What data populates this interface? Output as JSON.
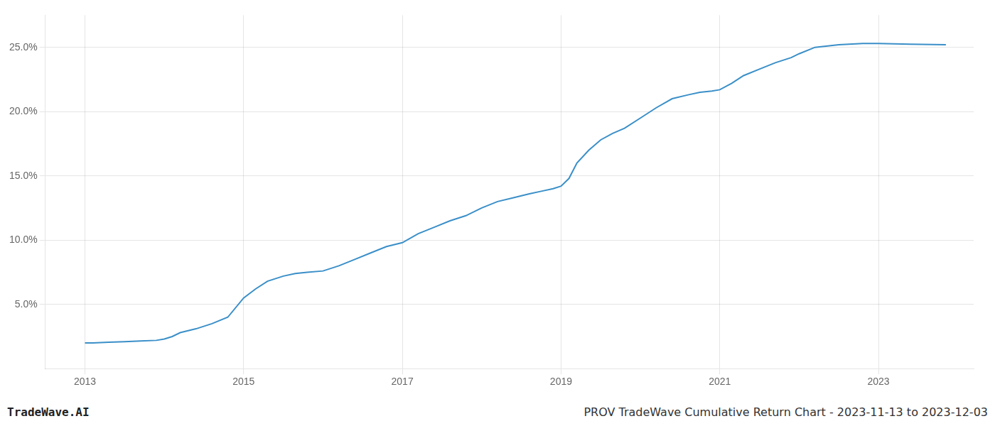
{
  "chart_data": {
    "type": "line",
    "title": "PROV TradeWave Cumulative Return Chart - 2023-11-13 to 2023-12-03",
    "annotations": [
      "TradeWave.AI"
    ],
    "x": [
      2013.0,
      2013.1,
      2013.3,
      2013.5,
      2013.7,
      2013.9,
      2014.0,
      2014.1,
      2014.2,
      2014.4,
      2014.6,
      2014.8,
      2015.0,
      2015.15,
      2015.3,
      2015.5,
      2015.65,
      2015.8,
      2016.0,
      2016.2,
      2016.4,
      2016.6,
      2016.8,
      2017.0,
      2017.2,
      2017.4,
      2017.6,
      2017.8,
      2018.0,
      2018.2,
      2018.4,
      2018.6,
      2018.75,
      2018.9,
      2019.0,
      2019.1,
      2019.2,
      2019.35,
      2019.5,
      2019.65,
      2019.8,
      2020.0,
      2020.2,
      2020.4,
      2020.6,
      2020.75,
      2020.9,
      2021.0,
      2021.15,
      2021.3,
      2021.5,
      2021.7,
      2021.9,
      2022.0,
      2022.2,
      2022.5,
      2022.8,
      2023.0,
      2023.4,
      2023.85
    ],
    "values": [
      2.0,
      2.0,
      2.05,
      2.1,
      2.15,
      2.2,
      2.3,
      2.5,
      2.8,
      3.1,
      3.5,
      4.0,
      5.5,
      6.2,
      6.8,
      7.2,
      7.4,
      7.5,
      7.6,
      8.0,
      8.5,
      9.0,
      9.5,
      9.8,
      10.5,
      11.0,
      11.5,
      11.9,
      12.5,
      13.0,
      13.3,
      13.6,
      13.8,
      14.0,
      14.2,
      14.8,
      16.0,
      17.0,
      17.8,
      18.3,
      18.7,
      19.5,
      20.3,
      21.0,
      21.3,
      21.5,
      21.6,
      21.7,
      22.2,
      22.8,
      23.3,
      23.8,
      24.2,
      24.5,
      25.0,
      25.2,
      25.3,
      25.3,
      25.25,
      25.2
    ],
    "color": "#3a8fc8",
    "xlim": [
      2012.5,
      2024.2
    ],
    "ylim": [
      0,
      27.5
    ],
    "xticks": [
      2013,
      2015,
      2017,
      2019,
      2021,
      2023
    ],
    "yticks": [
      {
        "value": 5.0,
        "label": "5.0%"
      },
      {
        "value": 10.0,
        "label": "10.0%"
      },
      {
        "value": 15.0,
        "label": "15.0%"
      },
      {
        "value": 20.0,
        "label": "20.0%"
      },
      {
        "value": 25.0,
        "label": "25.0%"
      }
    ],
    "grid": true
  }
}
